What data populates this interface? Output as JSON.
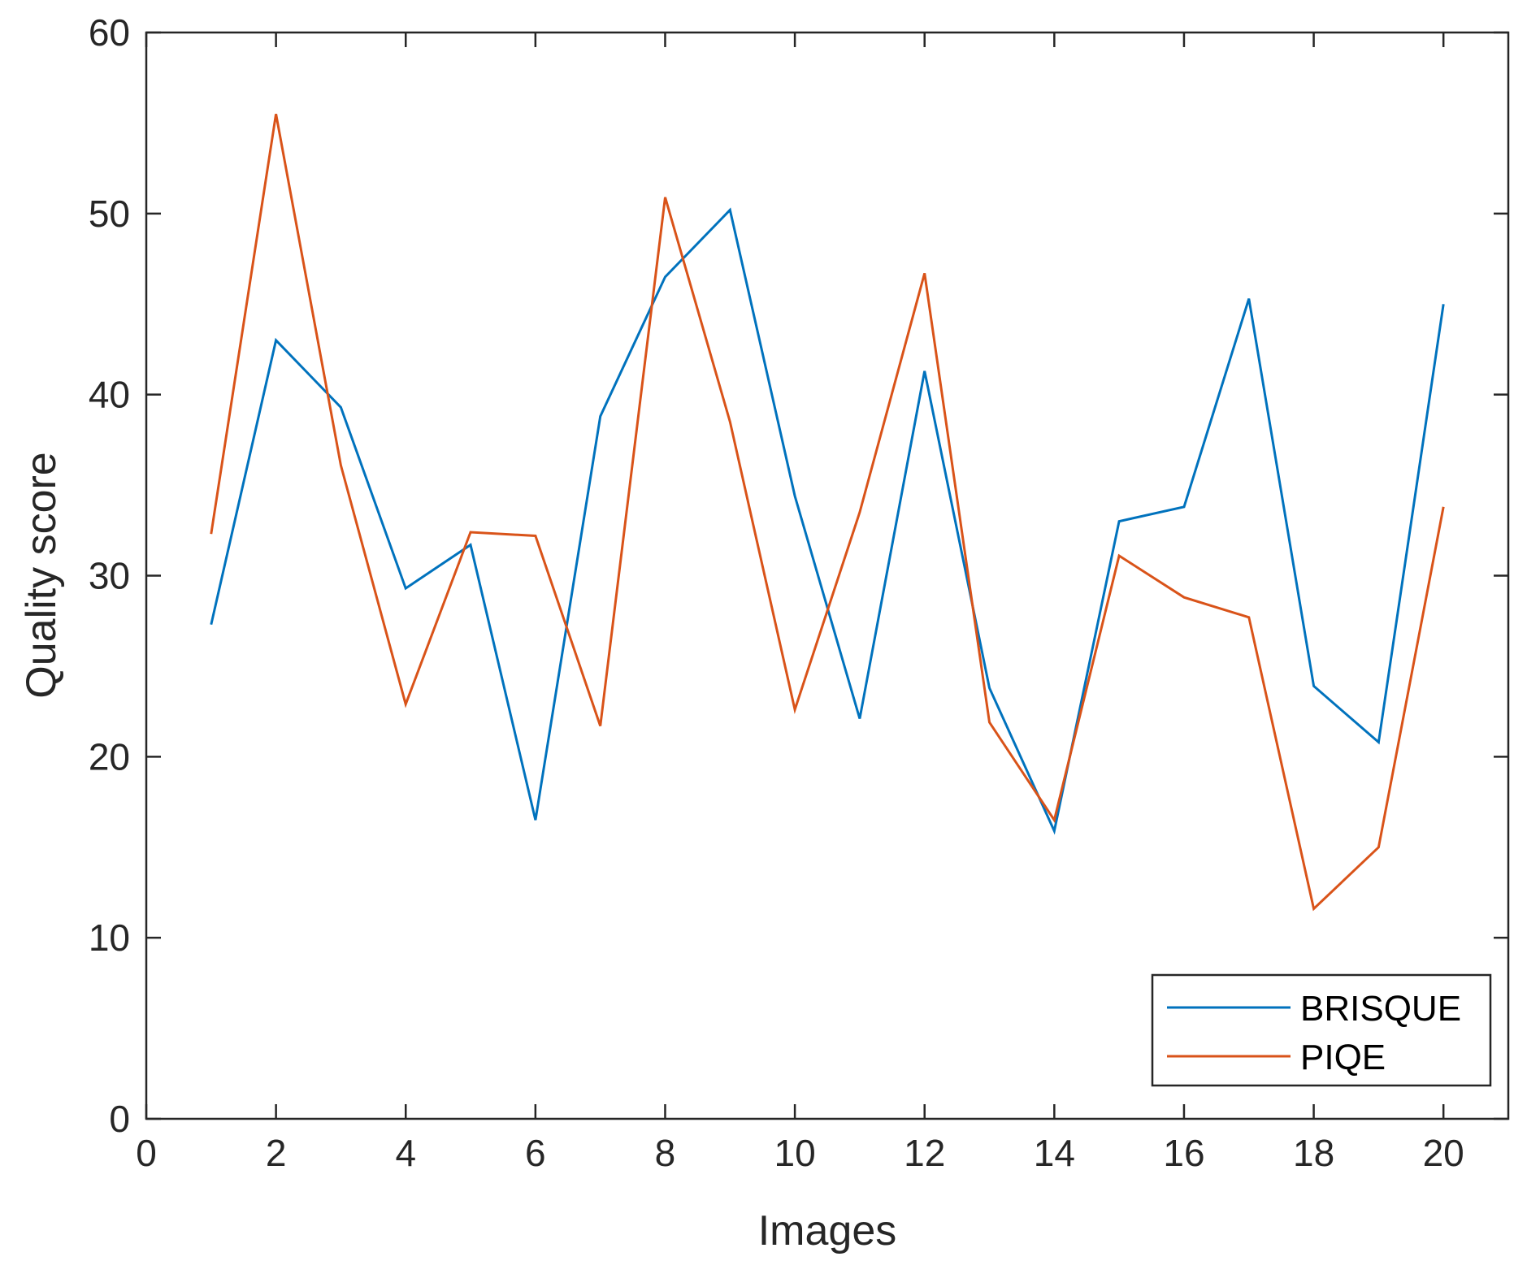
{
  "chart_data": {
    "type": "line",
    "title": "",
    "xlabel": "Images",
    "ylabel": "Quality score",
    "xlim": [
      0,
      21
    ],
    "ylim": [
      0,
      60
    ],
    "xticks": [
      0,
      2,
      4,
      6,
      8,
      10,
      12,
      14,
      16,
      18,
      20
    ],
    "yticks": [
      0,
      10,
      20,
      30,
      40,
      50,
      60
    ],
    "grid": false,
    "legend_position": "bottom-right",
    "x": [
      1,
      2,
      3,
      4,
      5,
      6,
      7,
      8,
      9,
      10,
      11,
      12,
      13,
      14,
      15,
      16,
      17,
      18,
      19,
      20
    ],
    "series": [
      {
        "name": "BRISQUE",
        "color": "#0072BD",
        "values": [
          27.3,
          43.0,
          39.3,
          29.3,
          31.7,
          16.5,
          38.8,
          46.5,
          50.2,
          34.4,
          22.1,
          41.3,
          23.8,
          15.9,
          33.0,
          33.8,
          45.3,
          23.9,
          20.8,
          45.0
        ]
      },
      {
        "name": "PIQE",
        "color": "#D95319",
        "values": [
          32.3,
          55.5,
          36.1,
          22.9,
          32.4,
          32.2,
          21.7,
          50.9,
          38.5,
          22.6,
          33.5,
          46.7,
          21.9,
          16.5,
          31.1,
          28.8,
          27.7,
          11.6,
          15.0,
          33.8
        ]
      }
    ]
  }
}
